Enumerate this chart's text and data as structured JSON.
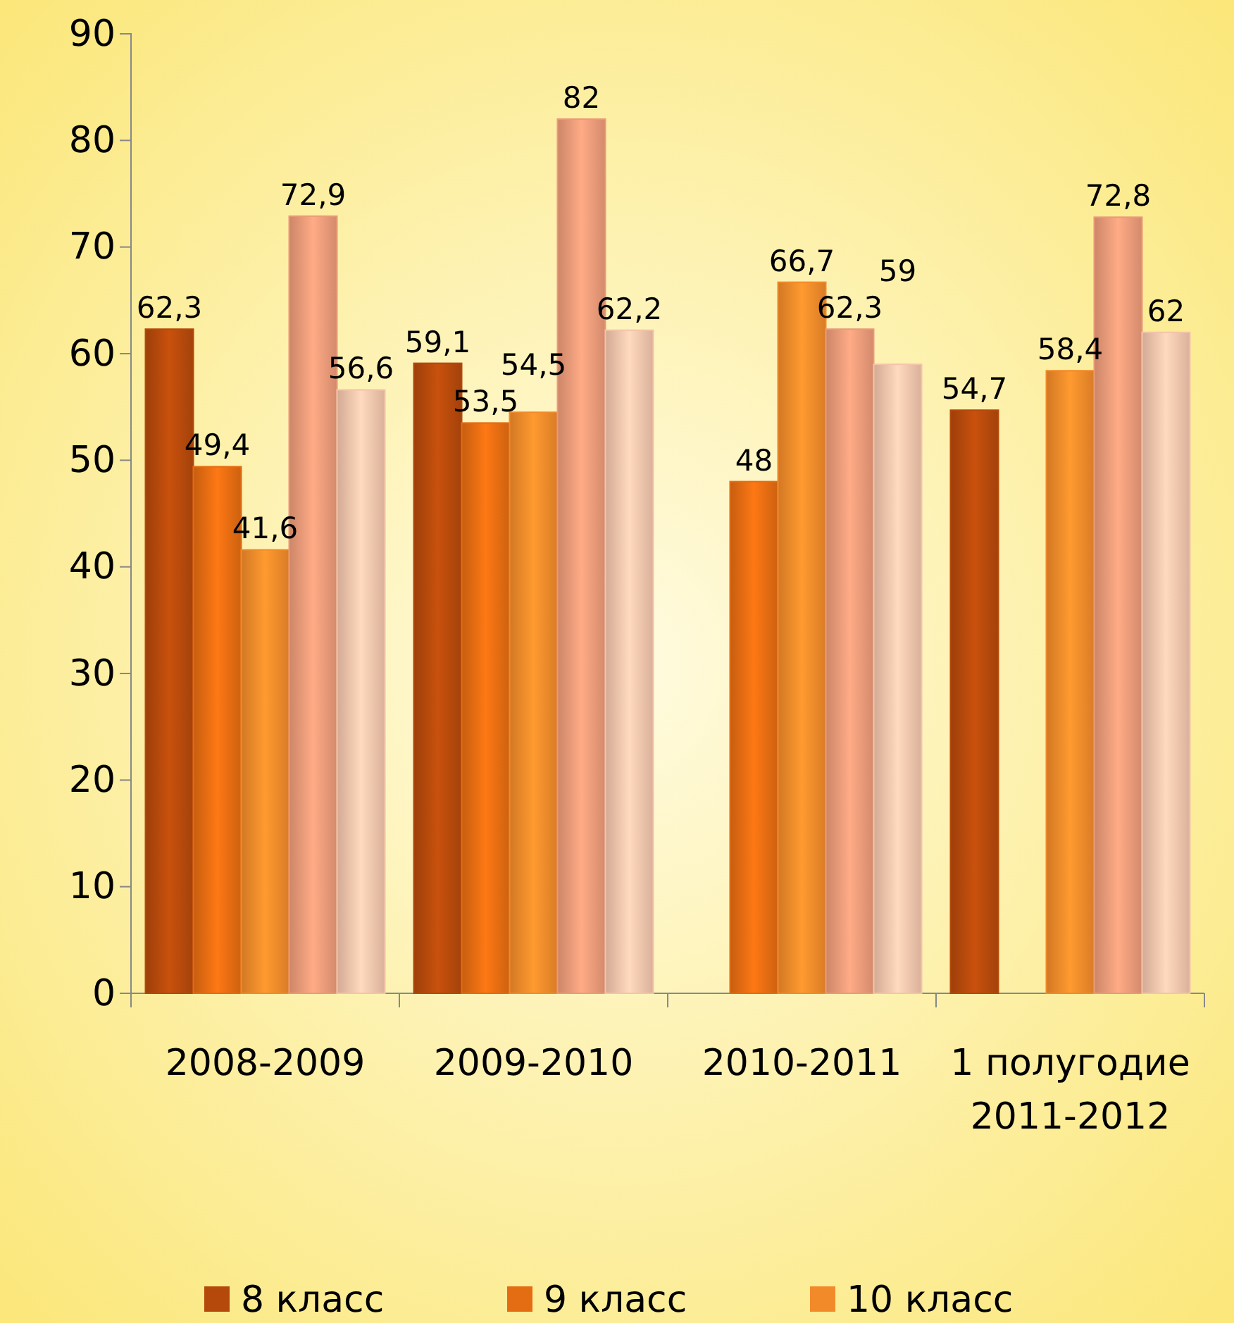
{
  "chart_data": {
    "type": "bar",
    "categories": [
      "2008-2009",
      "2009-2010",
      "2010-2011",
      "1 полугодие 2011-2012"
    ],
    "series": [
      {
        "name": "8 класс",
        "color": "#b5490c",
        "values": [
          62.3,
          59.1,
          null,
          54.7
        ],
        "value_labels": [
          "62,3",
          "59,1",
          null,
          "54,7"
        ]
      },
      {
        "name": "9 класс",
        "color": "#e46c12",
        "values": [
          49.4,
          53.5,
          48,
          null
        ],
        "value_labels": [
          "49,4",
          "53,5",
          "48",
          null
        ]
      },
      {
        "name": "10 класс",
        "color": "#f28a2a",
        "values": [
          41.6,
          54.5,
          66.7,
          58.4
        ],
        "value_labels": [
          "41,6",
          "54,5",
          "66,7",
          "58,4"
        ]
      },
      {
        "color": "#eb9a78",
        "values": [
          72.9,
          82,
          62.3,
          72.8
        ],
        "value_labels": [
          "72,9",
          "82",
          "62,3",
          "72,8"
        ]
      },
      {
        "color": "#f3c4ab",
        "values": [
          56.6,
          62.2,
          59,
          62
        ],
        "value_labels": [
          "56,6",
          "62,2",
          "59",
          "62"
        ]
      }
    ],
    "ylim": [
      0,
      90
    ],
    "yticks": [
      0,
      10,
      20,
      30,
      40,
      50,
      60,
      70,
      80,
      90
    ],
    "legend": "bottom"
  }
}
